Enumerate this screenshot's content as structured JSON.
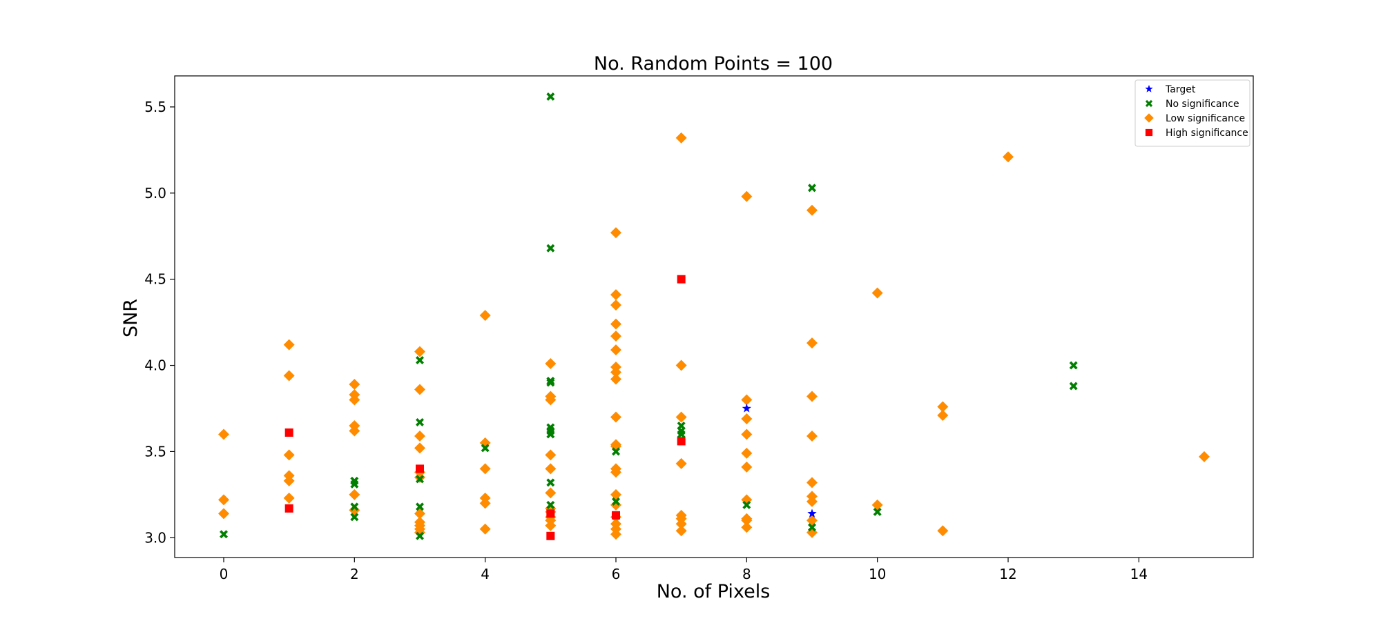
{
  "chart_data": {
    "type": "scatter",
    "title": "No. Random Points = 100",
    "xlabel": "No. of Pixels",
    "ylabel": "SNR",
    "xlim": [
      -0.75,
      15.75
    ],
    "ylim": [
      2.885,
      5.68
    ],
    "x_ticks": [
      0,
      2,
      4,
      6,
      8,
      10,
      12,
      14
    ],
    "y_ticks": [
      3.0,
      3.5,
      4.0,
      4.5,
      5.0,
      5.5
    ],
    "x_tick_labels": [
      "0",
      "2",
      "4",
      "6",
      "8",
      "10",
      "12",
      "14"
    ],
    "y_tick_labels": [
      "3.0",
      "3.5",
      "4.0",
      "4.5",
      "5.0",
      "5.5"
    ],
    "grid": false,
    "legend_position": "top-right",
    "series": [
      {
        "name": "Low significance",
        "marker": "diamond",
        "color": "#ff8c00",
        "points": [
          [
            0,
            3.6
          ],
          [
            0,
            3.22
          ],
          [
            0,
            3.14
          ],
          [
            1,
            4.12
          ],
          [
            1,
            3.94
          ],
          [
            1,
            3.48
          ],
          [
            1,
            3.36
          ],
          [
            1,
            3.33
          ],
          [
            1,
            3.23
          ],
          [
            2,
            3.89
          ],
          [
            2,
            3.83
          ],
          [
            2,
            3.8
          ],
          [
            2,
            3.65
          ],
          [
            2,
            3.62
          ],
          [
            2,
            3.25
          ],
          [
            2,
            3.16
          ],
          [
            3,
            4.08
          ],
          [
            3,
            3.86
          ],
          [
            3,
            3.59
          ],
          [
            3,
            3.52
          ],
          [
            3,
            3.38
          ],
          [
            3,
            3.35
          ],
          [
            3,
            3.14
          ],
          [
            3,
            3.09
          ],
          [
            3,
            3.07
          ],
          [
            3,
            3.05
          ],
          [
            3,
            3.03
          ],
          [
            4,
            4.29
          ],
          [
            4,
            3.55
          ],
          [
            4,
            3.4
          ],
          [
            4,
            3.23
          ],
          [
            4,
            3.2
          ],
          [
            4,
            3.05
          ],
          [
            5,
            4.01
          ],
          [
            5,
            3.82
          ],
          [
            5,
            3.8
          ],
          [
            5,
            3.48
          ],
          [
            5,
            3.4
          ],
          [
            5,
            3.26
          ],
          [
            5,
            3.17
          ],
          [
            5,
            3.15
          ],
          [
            5,
            3.12
          ],
          [
            5,
            3.1
          ],
          [
            5,
            3.07
          ],
          [
            6,
            4.77
          ],
          [
            6,
            4.41
          ],
          [
            6,
            4.35
          ],
          [
            6,
            4.24
          ],
          [
            6,
            4.17
          ],
          [
            6,
            4.09
          ],
          [
            6,
            3.99
          ],
          [
            6,
            3.96
          ],
          [
            6,
            3.92
          ],
          [
            6,
            3.7
          ],
          [
            6,
            3.54
          ],
          [
            6,
            3.53
          ],
          [
            6,
            3.4
          ],
          [
            6,
            3.38
          ],
          [
            6,
            3.25
          ],
          [
            6,
            3.19
          ],
          [
            6,
            3.12
          ],
          [
            6,
            3.08
          ],
          [
            6,
            3.05
          ],
          [
            6,
            3.02
          ],
          [
            7,
            5.32
          ],
          [
            7,
            4.0
          ],
          [
            7,
            3.7
          ],
          [
            7,
            3.43
          ],
          [
            7,
            3.13
          ],
          [
            7,
            3.11
          ],
          [
            7,
            3.08
          ],
          [
            7,
            3.04
          ],
          [
            8,
            4.98
          ],
          [
            8,
            3.8
          ],
          [
            8,
            3.69
          ],
          [
            8,
            3.6
          ],
          [
            8,
            3.49
          ],
          [
            8,
            3.41
          ],
          [
            8,
            3.22
          ],
          [
            8,
            3.11
          ],
          [
            8,
            3.1
          ],
          [
            8,
            3.06
          ],
          [
            9,
            4.9
          ],
          [
            9,
            4.13
          ],
          [
            9,
            3.82
          ],
          [
            9,
            3.59
          ],
          [
            9,
            3.32
          ],
          [
            9,
            3.24
          ],
          [
            9,
            3.21
          ],
          [
            9,
            3.1
          ],
          [
            9,
            3.03
          ],
          [
            10,
            4.42
          ],
          [
            10,
            3.19
          ],
          [
            11,
            3.76
          ],
          [
            11,
            3.71
          ],
          [
            11,
            3.04
          ],
          [
            12,
            5.21
          ],
          [
            15,
            3.47
          ]
        ]
      },
      {
        "name": "No significance",
        "marker": "x-cross",
        "color": "#007f00",
        "points": [
          [
            0,
            3.02
          ],
          [
            2,
            3.33
          ],
          [
            2,
            3.31
          ],
          [
            2,
            3.18
          ],
          [
            2,
            3.12
          ],
          [
            3,
            4.03
          ],
          [
            3,
            3.67
          ],
          [
            3,
            3.34
          ],
          [
            3,
            3.18
          ],
          [
            3,
            3.01
          ],
          [
            4,
            3.52
          ],
          [
            5,
            5.56
          ],
          [
            5,
            4.68
          ],
          [
            5,
            3.91
          ],
          [
            5,
            3.9
          ],
          [
            5,
            3.64
          ],
          [
            5,
            3.62
          ],
          [
            5,
            3.6
          ],
          [
            5,
            3.32
          ],
          [
            5,
            3.19
          ],
          [
            6,
            3.5
          ],
          [
            6,
            3.21
          ],
          [
            7,
            3.65
          ],
          [
            7,
            3.62
          ],
          [
            7,
            3.6
          ],
          [
            8,
            3.19
          ],
          [
            9,
            5.03
          ],
          [
            9,
            3.06
          ],
          [
            10,
            3.15
          ],
          [
            13,
            4.0
          ],
          [
            13,
            3.88
          ]
        ]
      },
      {
        "name": "High significance",
        "marker": "square",
        "color": "#ff0000",
        "points": [
          [
            1,
            3.61
          ],
          [
            1,
            3.17
          ],
          [
            3,
            3.4
          ],
          [
            5,
            3.14
          ],
          [
            5,
            3.01
          ],
          [
            6,
            3.13
          ],
          [
            7,
            4.5
          ],
          [
            7,
            3.56
          ]
        ]
      },
      {
        "name": "Target",
        "marker": "star",
        "color": "#0000ff",
        "points": [
          [
            8,
            3.75
          ],
          [
            9,
            3.14
          ]
        ]
      }
    ],
    "legend_order": [
      "Target",
      "No significance",
      "Low significance",
      "High significance"
    ]
  }
}
